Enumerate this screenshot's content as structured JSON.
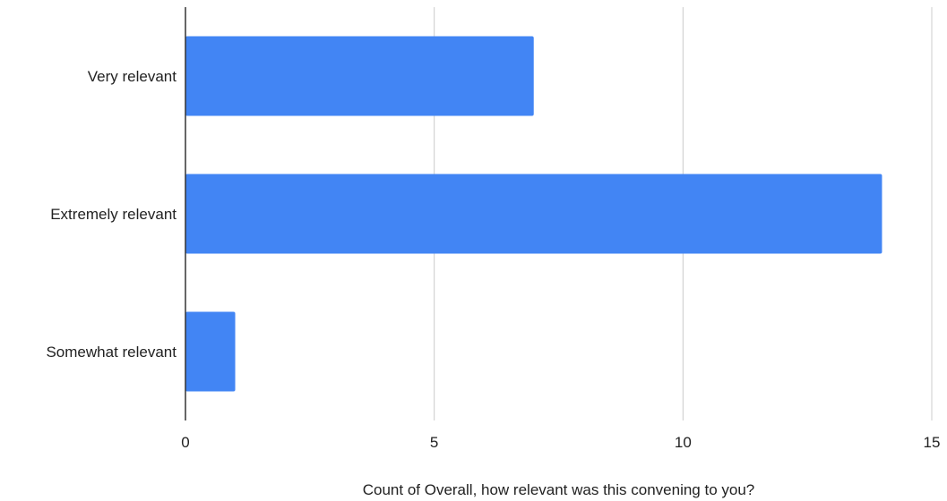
{
  "chart_data": {
    "type": "bar",
    "orientation": "horizontal",
    "categories": [
      "Very relevant",
      "Extremely relevant",
      "Somewhat relevant"
    ],
    "values": [
      7,
      14,
      1
    ],
    "xlabel": "Count of Overall, how relevant was this convening to you?",
    "ylabel": "",
    "xlim": [
      0,
      15
    ],
    "xticks": [
      0,
      5,
      10,
      15
    ],
    "grid": true,
    "colors": {
      "bar": "#4285f4",
      "grid": "#cccccc",
      "axis": "#333333"
    }
  }
}
